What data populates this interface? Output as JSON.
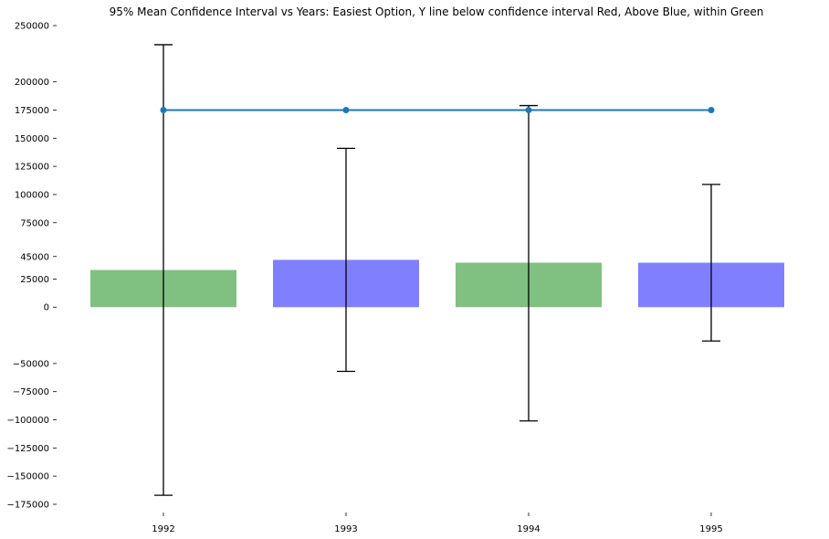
{
  "chart_data": {
    "type": "bar",
    "title": "95% Mean Confidence Interval vs Years: Easiest Option, Y line below confidence interval Red, Above Blue, within Green",
    "xlabel": "",
    "ylabel": "",
    "categories": [
      "1992",
      "1993",
      "1994",
      "1995"
    ],
    "values": [
      33000,
      42000,
      39500,
      39500
    ],
    "bar_colors": [
      "#80c080",
      "#8080ff",
      "#80c080",
      "#8080ff"
    ],
    "error_low": [
      -167000,
      -57000,
      -101000,
      -30000
    ],
    "error_high": [
      233000,
      141000,
      179000,
      109000
    ],
    "y_line": {
      "value": 175000,
      "color": "#1f77b4"
    },
    "ylim": [
      -175000,
      250000
    ],
    "yticks": [
      250000,
      200000,
      175000,
      150000,
      125000,
      100000,
      75000,
      45000,
      25000,
      0,
      -50000,
      -75000,
      -100000,
      -125000,
      -150000,
      -175000
    ],
    "ytick_labels": [
      "250000",
      "200000",
      "175000",
      "150000",
      "125000",
      "100000",
      "75000",
      "45000",
      "25000",
      "0",
      "−50000",
      "−75000",
      "−100000",
      "−125000",
      "−150000",
      "−175000"
    ],
    "grid": false,
    "legend": "none"
  }
}
